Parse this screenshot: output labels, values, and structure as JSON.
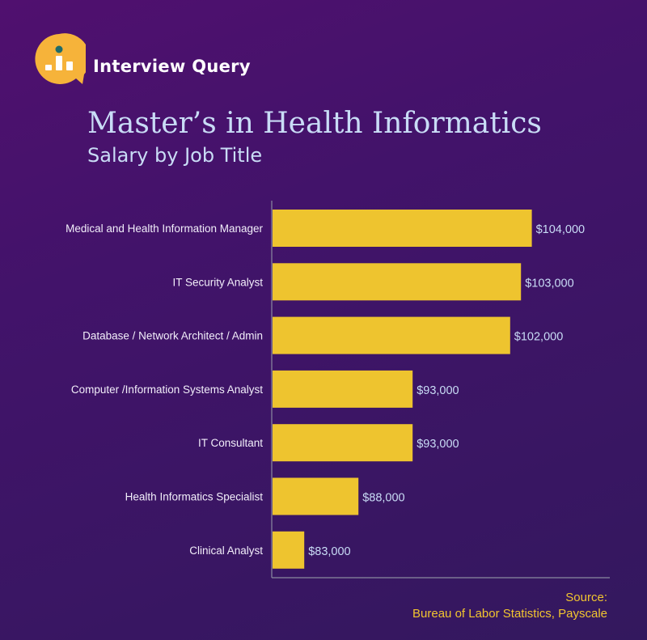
{
  "brand": {
    "name": "Interview Query",
    "logo_icon": "bar-chart-magnifier-icon"
  },
  "header": {
    "title": "Master’s in Health Informatics",
    "subtitle": "Salary by Job Title"
  },
  "colors": {
    "bar": "#EEC42F",
    "axis": "#8a8aa0",
    "accent": "#F6B33A"
  },
  "chart_data": {
    "type": "bar",
    "orientation": "horizontal",
    "title": "Master’s in Health Informatics",
    "subtitle": "Salary by Job Title",
    "categories": [
      "Medical and Health Information Manager",
      "IT Security Analyst",
      "Database / Network Architect / Admin",
      "Computer /Information Systems Analyst",
      "IT Consultant",
      "Health Informatics Specialist",
      "Clinical Analyst"
    ],
    "values": [
      104000,
      103000,
      102000,
      93000,
      93000,
      88000,
      83000
    ],
    "value_labels": [
      "$104,000",
      "$103,000",
      "$102,000",
      "$93,000",
      "$93,000",
      "$88,000",
      "$83,000"
    ],
    "xlim": [
      80000,
      105000
    ],
    "xlabel": "",
    "ylabel": "",
    "grid": false,
    "legend": "none"
  },
  "source": {
    "label": "Source:",
    "text": "Bureau of Labor Statistics, Payscale"
  }
}
